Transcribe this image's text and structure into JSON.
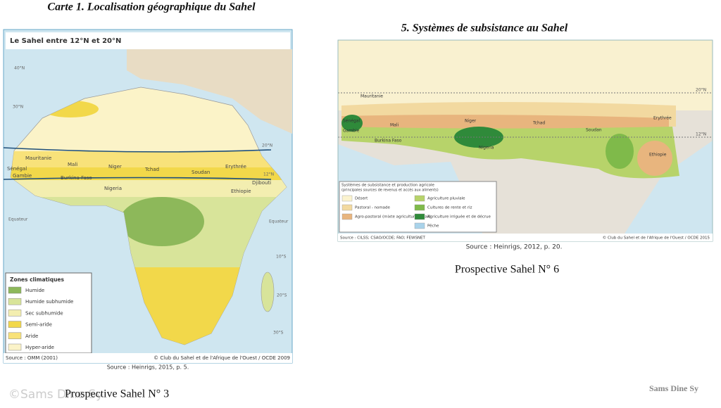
{
  "left_map": {
    "caption": "Carte 1. Localisation géographique du Sahel",
    "title": "Le Sahel entre 12°N et 20°N",
    "latitudes": [
      "40°N",
      "30°N",
      "20°N",
      "12°N",
      "Equateur",
      "10°S",
      "20°S",
      "30°S"
    ],
    "countries": [
      "Mauritanie",
      "Mali",
      "Niger",
      "Tchad",
      "Soudan",
      "Erythrée",
      "Sénégal",
      "Gambie",
      "Burkina Faso",
      "Nigeria",
      "Djibouti",
      "Ethiopie"
    ],
    "legend": {
      "title": "Zones climatiques",
      "items": [
        {
          "label": "Humide",
          "color": "#8db85a"
        },
        {
          "label": "Humide subhumide",
          "color": "#d8e49a"
        },
        {
          "label": "Sec subhumide",
          "color": "#f3eeb0"
        },
        {
          "label": "Semi-aride",
          "color": "#f2d84a"
        },
        {
          "label": "Aride",
          "color": "#f8e27a"
        },
        {
          "label": "Hyper-aride",
          "color": "#fbf3c8"
        }
      ]
    },
    "source": "Source : OMM (2001)",
    "copyright": "© Club du Sahel et de l'Afrique de l'Ouest / OCDE 2009",
    "reference": "Source : Heinrigs, 2015, p. 5.",
    "series_label": "Prospective Sahel N° 3",
    "watermark": "©Sams Dine Sy"
  },
  "right_map": {
    "caption": "5. Systèmes de subsistance au Sahel",
    "latitudes": [
      "20°N",
      "12°N"
    ],
    "countries": [
      "Mauritanie",
      "Sénégal",
      "Gambie",
      "Mali",
      "Niger",
      "Tchad",
      "Soudan",
      "Erythrée",
      "Ethiopie",
      "Burkina Faso",
      "Nigeria"
    ],
    "legend": {
      "title": "Systèmes de subsistance et production agricole",
      "subtitle": "(principales sources de revenus et accès aux aliments)",
      "items": [
        {
          "label": "Désert",
          "color": "#fbf3cf"
        },
        {
          "label": "Pastoral - nomade",
          "color": "#f2d9a0"
        },
        {
          "label": "Agro-pastoral (mixte agriculture/bétail)",
          "color": "#e8b57e"
        },
        {
          "label": "Agriculture pluviale",
          "color": "#b7d36a"
        },
        {
          "label": "Cultures de rente et riz",
          "color": "#7fba4a"
        },
        {
          "label": "Agriculture irriguée et de décrue",
          "color": "#2f8a3a"
        },
        {
          "label": "Pêche",
          "color": "#a9d3ea"
        }
      ]
    },
    "source": "Source : CILSS; CSAO/OCDE; FAO; FEWSNET",
    "copyright": "© Club du Sahel et de l'Afrique de l'Ouest / OCDE 2015",
    "reference": "Source : Heinrigs, 2012,  p. 20.",
    "series_label": "Prospective Sahel N° 6"
  },
  "author": "Sams Dine Sy"
}
